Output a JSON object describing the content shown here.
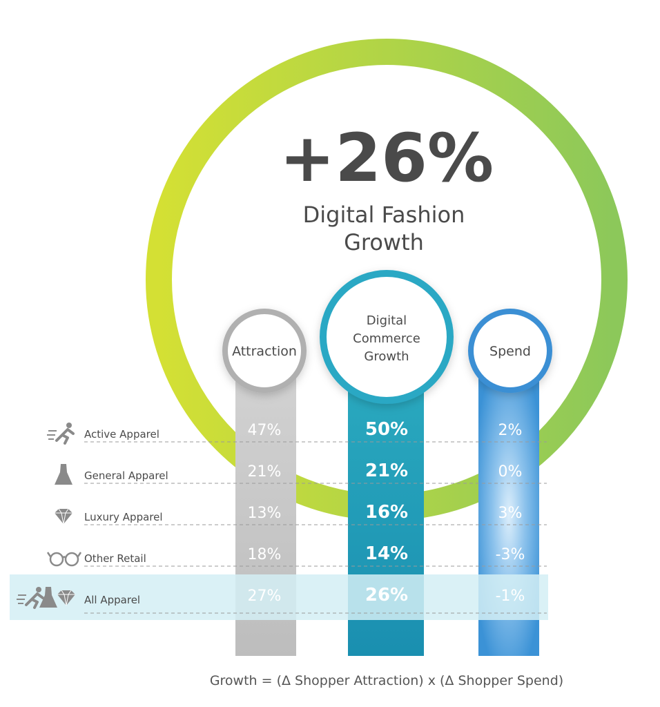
{
  "headline": {
    "value": "+26%",
    "label_line1": "Digital Fashion",
    "label_line2": "Growth"
  },
  "columns": [
    {
      "key": "attraction",
      "label_lines": [
        "Attraction"
      ],
      "color": "#c4c4c4",
      "ring_color": "#b0b0b0"
    },
    {
      "key": "growth",
      "label_lines": [
        "Digital",
        "Commerce",
        "Growth"
      ],
      "color": "#1f9ab3",
      "ring_color": "#29a8c4"
    },
    {
      "key": "spend",
      "label_lines": [
        "Spend"
      ],
      "color": "#3b92d6",
      "ring_color": "#3a8fd4"
    }
  ],
  "chart_data": {
    "type": "table",
    "columns": [
      "Attraction",
      "Digital Commerce Growth",
      "Spend"
    ],
    "rows": [
      {
        "label": "Active Apparel",
        "icon": "runner-icon",
        "values": [
          "47%",
          "50%",
          "2%"
        ]
      },
      {
        "label": "General Apparel",
        "icon": "dress-icon",
        "values": [
          "21%",
          "21%",
          "0%"
        ]
      },
      {
        "label": "Luxury Apparel",
        "icon": "diamond-icon",
        "values": [
          "13%",
          "16%",
          "3%"
        ]
      },
      {
        "label": "Other Retail",
        "icon": "glasses-icon",
        "values": [
          "18%",
          "14%",
          "-3%"
        ]
      },
      {
        "label": "All Apparel",
        "icon": "all-apparel-icons",
        "values": [
          "27%",
          "26%",
          "-1%"
        ],
        "highlight": true
      }
    ],
    "series": [
      {
        "name": "Attraction",
        "values": [
          47,
          21,
          13,
          18,
          27
        ]
      },
      {
        "name": "Digital Commerce Growth",
        "values": [
          50,
          21,
          16,
          14,
          26
        ]
      },
      {
        "name": "Spend",
        "values": [
          2,
          0,
          3,
          -3,
          -1
        ]
      }
    ]
  },
  "colors": {
    "ring_start": "#d4e034",
    "ring_end": "#8cc85a",
    "highlight_band": "#d4eef4",
    "text_dark": "#4a4a4a",
    "icon_gray": "#8a8a8a",
    "dash": "#9a9a9a"
  },
  "footer": {
    "formula": "Growth = (Δ Shopper Attraction) x (Δ Shopper Spend)"
  }
}
